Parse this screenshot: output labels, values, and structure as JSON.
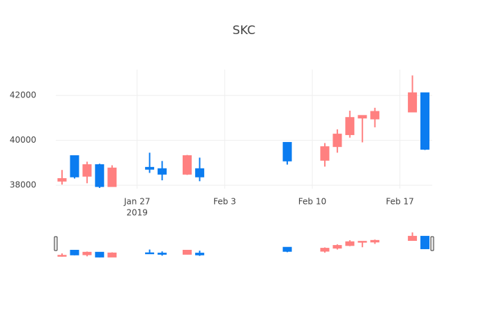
{
  "chart_data": {
    "type": "candlestick",
    "title": "SKC",
    "x": [
      "2019-01-21",
      "2019-01-22",
      "2019-01-23",
      "2019-01-24",
      "2019-01-25",
      "2019-01-28",
      "2019-01-29",
      "2019-01-31",
      "2019-02-01",
      "2019-02-08",
      "2019-02-11",
      "2019-02-12",
      "2019-02-13",
      "2019-02-14",
      "2019-02-15",
      "2019-02-18",
      "2019-02-19"
    ],
    "open": [
      38180,
      39320,
      38400,
      38920,
      37940,
      38800,
      38740,
      38490,
      38740,
      39910,
      39110,
      39720,
      40250,
      40990,
      40950,
      41260,
      42120
    ],
    "high": [
      38680,
      39320,
      39050,
      38960,
      38890,
      39450,
      39080,
      39350,
      39230,
      39910,
      39880,
      40490,
      41320,
      41110,
      41450,
      42890,
      42120
    ],
    "low": [
      38030,
      38300,
      38090,
      37880,
      37940,
      38550,
      38220,
      38460,
      38180,
      38920,
      38830,
      39450,
      40120,
      39910,
      40580,
      41260,
      39570
    ],
    "close": [
      38300,
      38370,
      38920,
      37940,
      38770,
      38710,
      38490,
      39320,
      38370,
      39080,
      39720,
      40280,
      41020,
      41110,
      41290,
      42120,
      39600
    ],
    "increasing_color": "#ff8080",
    "decreasing_color": "#0b7cf0",
    "xlim": [
      "2019-01-20T12:00",
      "2019-02-19T14:00"
    ],
    "xticks": [
      {
        "value": "2019-01-27",
        "label": "Jan 27"
      },
      {
        "value": "2019-02-03",
        "label": "Feb 3"
      },
      {
        "value": "2019-02-10",
        "label": "Feb 10"
      },
      {
        "value": "2019-02-17",
        "label": "Feb 17"
      }
    ],
    "xtick_year": "2019",
    "ylim": [
      37850,
      43150
    ],
    "yticks": [
      38000,
      40000,
      42000
    ],
    "grid": true,
    "rangeslider": true
  }
}
